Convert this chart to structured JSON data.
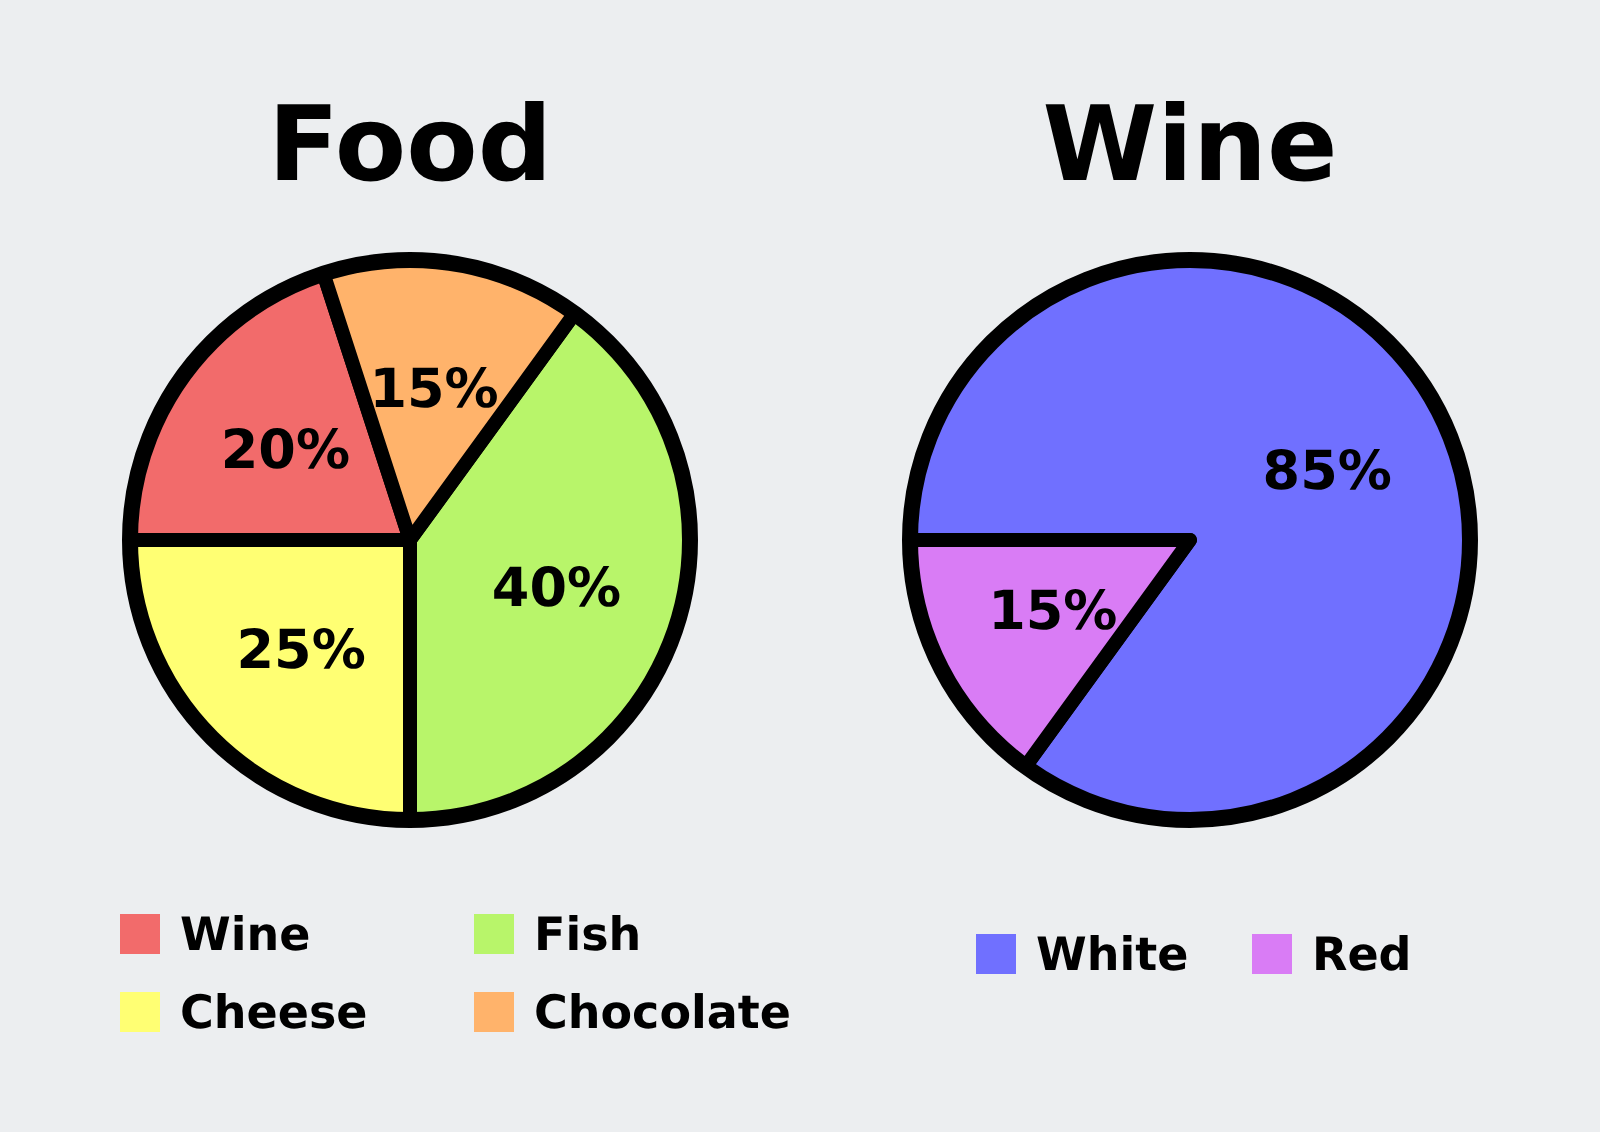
{
  "chart_data": [
    {
      "type": "pie",
      "title": "Food",
      "categories": [
        "Wine",
        "Cheese",
        "Fish",
        "Chocolate"
      ],
      "values": [
        20,
        25,
        40,
        15
      ],
      "colors": [
        "#f26b6b",
        "#ffff73",
        "#b8f56a",
        "#ffb36b"
      ],
      "value_labels": [
        "20%",
        "25%",
        "40%",
        "15%"
      ],
      "legend": "bottom"
    },
    {
      "type": "pie",
      "title": "Wine",
      "categories": [
        "White",
        "Red"
      ],
      "values": [
        85,
        15
      ],
      "colors": [
        "#7070ff",
        "#d97cf5"
      ],
      "value_labels": [
        "85%",
        "15%"
      ],
      "legend": "bottom"
    }
  ]
}
